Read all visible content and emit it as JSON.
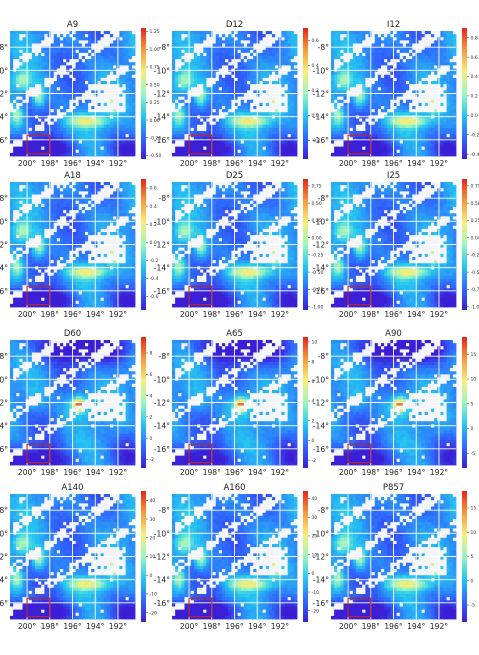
{
  "chart_data": {
    "type": "heatmap",
    "layout": {
      "rows": 4,
      "cols": 3
    },
    "x_ticks": [
      "200°",
      "198°",
      "196°",
      "194°",
      "192°"
    ],
    "x_tick_values": [
      200,
      198,
      196,
      194,
      192
    ],
    "x_range": [
      201.5,
      190.5
    ],
    "y_ticks": [
      "-8°",
      "-10°",
      "-12°",
      "-14°",
      "-16°"
    ],
    "y_tick_values": [
      -8,
      -10,
      -12,
      -14,
      -16
    ],
    "y_range": [
      -6.6,
      -17.4
    ],
    "colormap": [
      "#3b1fd6",
      "#2f6bff",
      "#25c8f0",
      "#9df5c0",
      "#f7ee7a",
      "#f79a3a",
      "#e8231c"
    ],
    "highlight_box": {
      "x": [
        200,
        198
      ],
      "y": [
        -15.6,
        -17.2
      ],
      "color": "#c0281f"
    },
    "panels": [
      {
        "title": "A9",
        "vmin": -0.55,
        "vmax": 1.3,
        "ticks": [
          "1.25",
          "1.00",
          "0.75",
          "0.50",
          "0.25",
          "0.00",
          "-0.25",
          "-0.50"
        ],
        "tick_values": [
          1.25,
          1.0,
          0.75,
          0.5,
          0.25,
          0.0,
          -0.25,
          -0.5
        ],
        "pattern": "ridge"
      },
      {
        "title": "D12",
        "vmin": -0.35,
        "vmax": 0.7,
        "ticks": [
          "0.6",
          "0.4",
          "0.2",
          "0.0",
          "-0.2"
        ],
        "tick_values": [
          0.6,
          0.4,
          0.2,
          0.0,
          -0.2
        ],
        "pattern": "ridge"
      },
      {
        "title": "I12",
        "vmin": -0.45,
        "vmax": 0.9,
        "ticks": [
          "0.8",
          "0.6",
          "0.4",
          "0.2",
          "0.0",
          "-0.2",
          "-0.4"
        ],
        "tick_values": [
          0.8,
          0.6,
          0.4,
          0.2,
          0.0,
          -0.2,
          -0.4
        ],
        "pattern": "ridge"
      },
      {
        "title": "A18",
        "vmin": -0.75,
        "vmax": 0.7,
        "ticks": [
          "0.6",
          "0.4",
          "0.2",
          "0.0",
          "-0.2",
          "-0.4",
          "-0.6"
        ],
        "tick_values": [
          0.6,
          0.4,
          0.2,
          0.0,
          -0.2,
          -0.4,
          -0.6
        ],
        "pattern": "ridge"
      },
      {
        "title": "D25",
        "vmin": -1.05,
        "vmax": 0.85,
        "ticks": [
          "0.75",
          "0.50",
          "0.25",
          "0.00",
          "-0.25",
          "-0.50",
          "-0.75",
          "-1.00"
        ],
        "tick_values": [
          0.75,
          0.5,
          0.25,
          0.0,
          -0.25,
          -0.5,
          -0.75,
          -1.0
        ],
        "pattern": "ridge"
      },
      {
        "title": "I25",
        "vmin": -1.05,
        "vmax": 0.85,
        "ticks": [
          "0.75",
          "0.50",
          "0.25",
          "0.00",
          "-0.25",
          "-0.50",
          "-0.75",
          "-1.00"
        ],
        "tick_values": [
          0.75,
          0.5,
          0.25,
          0.0,
          -0.25,
          -0.5,
          -0.75,
          -1.0
        ],
        "pattern": "ridge"
      },
      {
        "title": "D60",
        "vmin": -2.8,
        "vmax": 9.5,
        "ticks": [
          "8",
          "6",
          "4",
          "2",
          "0",
          "-2"
        ],
        "tick_values": [
          8,
          6,
          4,
          2,
          0,
          -2
        ],
        "pattern": "spot"
      },
      {
        "title": "A65",
        "vmin": -2.8,
        "vmax": 10.5,
        "ticks": [
          "10",
          "8",
          "6",
          "4",
          "2",
          "0",
          "-2"
        ],
        "tick_values": [
          10,
          8,
          6,
          4,
          2,
          0,
          -2
        ],
        "pattern": "spot"
      },
      {
        "title": "A90",
        "vmin": -8.0,
        "vmax": 18.5,
        "ticks": [
          "15",
          "10",
          "5",
          "0",
          "-5"
        ],
        "tick_values": [
          15,
          10,
          5,
          0,
          -5
        ],
        "pattern": "spot"
      },
      {
        "title": "A140",
        "vmin": -25.0,
        "vmax": 45.0,
        "ticks": [
          "40",
          "30",
          "20",
          "10",
          "0",
          "-10",
          "-20"
        ],
        "tick_values": [
          40,
          30,
          20,
          10,
          0,
          -10,
          -20
        ],
        "pattern": "ridge"
      },
      {
        "title": "A160",
        "vmin": -26.0,
        "vmax": 44.0,
        "ticks": [
          "40",
          "30",
          "20",
          "10",
          "0",
          "-10",
          "-20"
        ],
        "tick_values": [
          40,
          30,
          20,
          10,
          0,
          -10,
          -20
        ],
        "pattern": "ridge"
      },
      {
        "title": "P857",
        "vmin": -8.5,
        "vmax": 18.5,
        "ticks": [
          "15",
          "10",
          "5",
          "0",
          "-5"
        ],
        "tick_values": [
          15,
          10,
          5,
          0,
          -5
        ],
        "pattern": "ridge"
      }
    ]
  }
}
